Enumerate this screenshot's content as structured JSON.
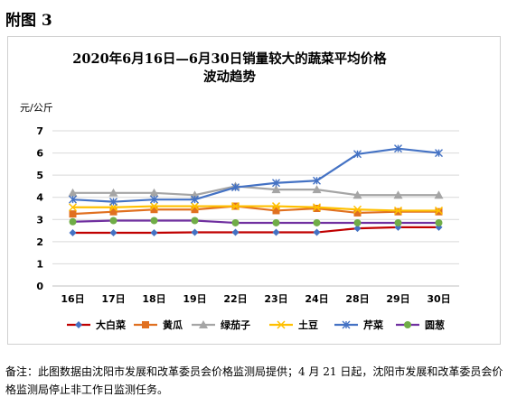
{
  "figure_label": "附图 3",
  "note": "备注：此图数据由沈阳市发展和改革委员会价格监测局提供；4 月 21 日起，沈阳市发展和改革委员会价格监测局停止非工作日监测任务。",
  "chart_data": {
    "type": "line",
    "title": [
      "2020年6月16日—6月30日销量较大的蔬菜平均价格",
      "波动趋势"
    ],
    "ylabel": "元/公斤",
    "xlabel": "",
    "ylim": [
      0,
      7
    ],
    "yticks": [
      0,
      1,
      2,
      3,
      4,
      5,
      6,
      7
    ],
    "grid": true,
    "legend_position": "bottom",
    "categories": [
      "16日",
      "17日",
      "18日",
      "19日",
      "22日",
      "23日",
      "24日",
      "28日",
      "29日",
      "30日"
    ],
    "series": [
      {
        "name": "大白菜",
        "color": "#c00000",
        "marker": "diamond",
        "marker_color": "#4472c4",
        "values": [
          2.4,
          2.4,
          2.4,
          2.42,
          2.42,
          2.42,
          2.42,
          2.6,
          2.65,
          2.65
        ]
      },
      {
        "name": "黄瓜",
        "color": "#e07020",
        "marker": "square",
        "marker_color": "#e07020",
        "values": [
          3.25,
          3.35,
          3.45,
          3.45,
          3.6,
          3.4,
          3.5,
          3.3,
          3.35,
          3.35
        ]
      },
      {
        "name": "绿茄子",
        "color": "#a5a5a5",
        "marker": "triangle",
        "marker_color": "#a5a5a5",
        "values": [
          4.2,
          4.2,
          4.2,
          4.1,
          4.5,
          4.35,
          4.35,
          4.1,
          4.1,
          4.1
        ]
      },
      {
        "name": "土豆",
        "color": "#ffc000",
        "marker": "x",
        "marker_color": "#ffc000",
        "values": [
          3.55,
          3.55,
          3.6,
          3.6,
          3.6,
          3.6,
          3.55,
          3.45,
          3.4,
          3.4
        ]
      },
      {
        "name": "芹菜",
        "color": "#4472c4",
        "marker": "asterisk",
        "marker_color": "#4472c4",
        "values": [
          3.9,
          3.8,
          3.9,
          3.9,
          4.45,
          4.65,
          4.75,
          5.95,
          6.2,
          6.0
        ]
      },
      {
        "name": "圆葱",
        "color": "#7030a0",
        "marker": "circle",
        "marker_color": "#70ad47",
        "values": [
          2.9,
          2.95,
          2.95,
          2.95,
          2.85,
          2.85,
          2.85,
          2.85,
          2.85,
          2.85
        ]
      }
    ]
  }
}
